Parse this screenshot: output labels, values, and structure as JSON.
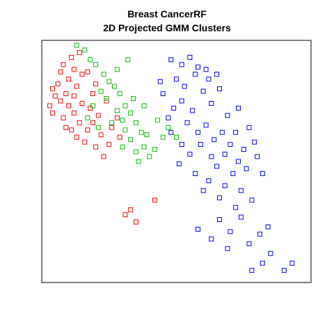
{
  "chart_data": {
    "type": "scatter",
    "title": "Breast CancerRF",
    "subtitle": "2D Projected GMM Clusters",
    "xlabel": "",
    "ylabel": "",
    "axes_visible": false,
    "box_frame": true,
    "grid": false,
    "xlim": [
      0,
      1
    ],
    "ylim": [
      0,
      1
    ],
    "series": [
      {
        "marker": "square",
        "color": "#ff0000",
        "points": [
          [
            0.11,
            0.93
          ],
          [
            0.14,
            0.95
          ],
          [
            0.08,
            0.9
          ],
          [
            0.12,
            0.88
          ],
          [
            0.1,
            0.84
          ],
          [
            0.06,
            0.82
          ],
          [
            0.09,
            0.78
          ],
          [
            0.13,
            0.81
          ],
          [
            0.05,
            0.77
          ],
          [
            0.07,
            0.75
          ],
          [
            0.1,
            0.73
          ],
          [
            0.12,
            0.7
          ],
          [
            0.15,
            0.74
          ],
          [
            0.18,
            0.72
          ],
          [
            0.21,
            0.69
          ],
          [
            0.14,
            0.66
          ],
          [
            0.17,
            0.63
          ],
          [
            0.22,
            0.61
          ],
          [
            0.26,
            0.64
          ],
          [
            0.28,
            0.68
          ],
          [
            0.24,
            0.75
          ],
          [
            0.19,
            0.78
          ],
          [
            0.03,
            0.73
          ],
          [
            0.04,
            0.7
          ],
          [
            0.08,
            0.68
          ],
          [
            0.11,
            0.63
          ],
          [
            0.16,
            0.58
          ],
          [
            0.2,
            0.56
          ],
          [
            0.13,
            0.6
          ],
          [
            0.09,
            0.64
          ],
          [
            0.25,
            0.57
          ],
          [
            0.29,
            0.6
          ],
          [
            0.17,
            0.87
          ],
          [
            0.15,
            0.86
          ],
          [
            0.07,
            0.87
          ],
          [
            0.2,
            0.82
          ],
          [
            0.33,
            0.3
          ],
          [
            0.35,
            0.25
          ],
          [
            0.31,
            0.28
          ],
          [
            0.23,
            0.52
          ],
          [
            0.04,
            0.8
          ],
          [
            0.12,
            0.77
          ],
          [
            0.19,
            0.66
          ],
          [
            0.42,
            0.34
          ]
        ]
      },
      {
        "marker": "square",
        "color": "#00c000",
        "points": [
          [
            0.16,
            0.96
          ],
          [
            0.13,
            0.98
          ],
          [
            0.18,
            0.92
          ],
          [
            0.2,
            0.9
          ],
          [
            0.23,
            0.86
          ],
          [
            0.25,
            0.83
          ],
          [
            0.27,
            0.81
          ],
          [
            0.22,
            0.79
          ],
          [
            0.24,
            0.76
          ],
          [
            0.29,
            0.78
          ],
          [
            0.31,
            0.73
          ],
          [
            0.28,
            0.71
          ],
          [
            0.33,
            0.7
          ],
          [
            0.35,
            0.66
          ],
          [
            0.37,
            0.62
          ],
          [
            0.31,
            0.63
          ],
          [
            0.26,
            0.66
          ],
          [
            0.33,
            0.59
          ],
          [
            0.38,
            0.56
          ],
          [
            0.4,
            0.52
          ],
          [
            0.36,
            0.5
          ],
          [
            0.42,
            0.55
          ],
          [
            0.19,
            0.73
          ],
          [
            0.17,
            0.68
          ],
          [
            0.21,
            0.64
          ],
          [
            0.3,
            0.67
          ],
          [
            0.34,
            0.76
          ],
          [
            0.38,
            0.73
          ],
          [
            0.45,
            0.6
          ],
          [
            0.47,
            0.64
          ],
          [
            0.3,
            0.56
          ],
          [
            0.35,
            0.54
          ],
          [
            0.28,
            0.88
          ],
          [
            0.32,
            0.92
          ],
          [
            0.39,
            0.61
          ],
          [
            0.43,
            0.67
          ],
          [
            0.5,
            0.6
          ]
        ]
      },
      {
        "marker": "square",
        "color": "#0000ff",
        "points": [
          [
            0.48,
            0.92
          ],
          [
            0.52,
            0.9
          ],
          [
            0.55,
            0.93
          ],
          [
            0.58,
            0.89
          ],
          [
            0.61,
            0.88
          ],
          [
            0.57,
            0.86
          ],
          [
            0.5,
            0.84
          ],
          [
            0.53,
            0.81
          ],
          [
            0.62,
            0.84
          ],
          [
            0.65,
            0.86
          ],
          [
            0.66,
            0.8
          ],
          [
            0.6,
            0.79
          ],
          [
            0.63,
            0.74
          ],
          [
            0.56,
            0.71
          ],
          [
            0.52,
            0.75
          ],
          [
            0.49,
            0.72
          ],
          [
            0.47,
            0.68
          ],
          [
            0.54,
            0.66
          ],
          [
            0.58,
            0.62
          ],
          [
            0.61,
            0.65
          ],
          [
            0.64,
            0.59
          ],
          [
            0.67,
            0.62
          ],
          [
            0.7,
            0.57
          ],
          [
            0.72,
            0.62
          ],
          [
            0.68,
            0.53
          ],
          [
            0.73,
            0.5
          ],
          [
            0.76,
            0.47
          ],
          [
            0.71,
            0.45
          ],
          [
            0.65,
            0.48
          ],
          [
            0.62,
            0.42
          ],
          [
            0.68,
            0.4
          ],
          [
            0.74,
            0.38
          ],
          [
            0.78,
            0.34
          ],
          [
            0.72,
            0.31
          ],
          [
            0.66,
            0.35
          ],
          [
            0.6,
            0.38
          ],
          [
            0.57,
            0.45
          ],
          [
            0.51,
            0.49
          ],
          [
            0.55,
            0.53
          ],
          [
            0.59,
            0.57
          ],
          [
            0.69,
            0.69
          ],
          [
            0.73,
            0.72
          ],
          [
            0.77,
            0.64
          ],
          [
            0.79,
            0.58
          ],
          [
            0.75,
            0.55
          ],
          [
            0.63,
            0.52
          ],
          [
            0.45,
            0.78
          ],
          [
            0.44,
            0.83
          ],
          [
            0.48,
            0.62
          ],
          [
            0.52,
            0.57
          ],
          [
            0.8,
            0.52
          ],
          [
            0.82,
            0.45
          ],
          [
            0.66,
            0.26
          ],
          [
            0.7,
            0.21
          ],
          [
            0.74,
            0.27
          ],
          [
            0.77,
            0.16
          ],
          [
            0.81,
            0.2
          ],
          [
            0.84,
            0.23
          ],
          [
            0.85,
            0.12
          ],
          [
            0.9,
            0.05
          ],
          [
            0.93,
            0.08
          ],
          [
            0.82,
            0.08
          ],
          [
            0.78,
            0.05
          ],
          [
            0.69,
            0.14
          ],
          [
            0.63,
            0.18
          ],
          [
            0.58,
            0.22
          ]
        ]
      }
    ]
  },
  "colors": {
    "series_1": "#ff0000",
    "series_2": "#00c000",
    "series_3": "#0000ff",
    "black_points": "#000000"
  }
}
